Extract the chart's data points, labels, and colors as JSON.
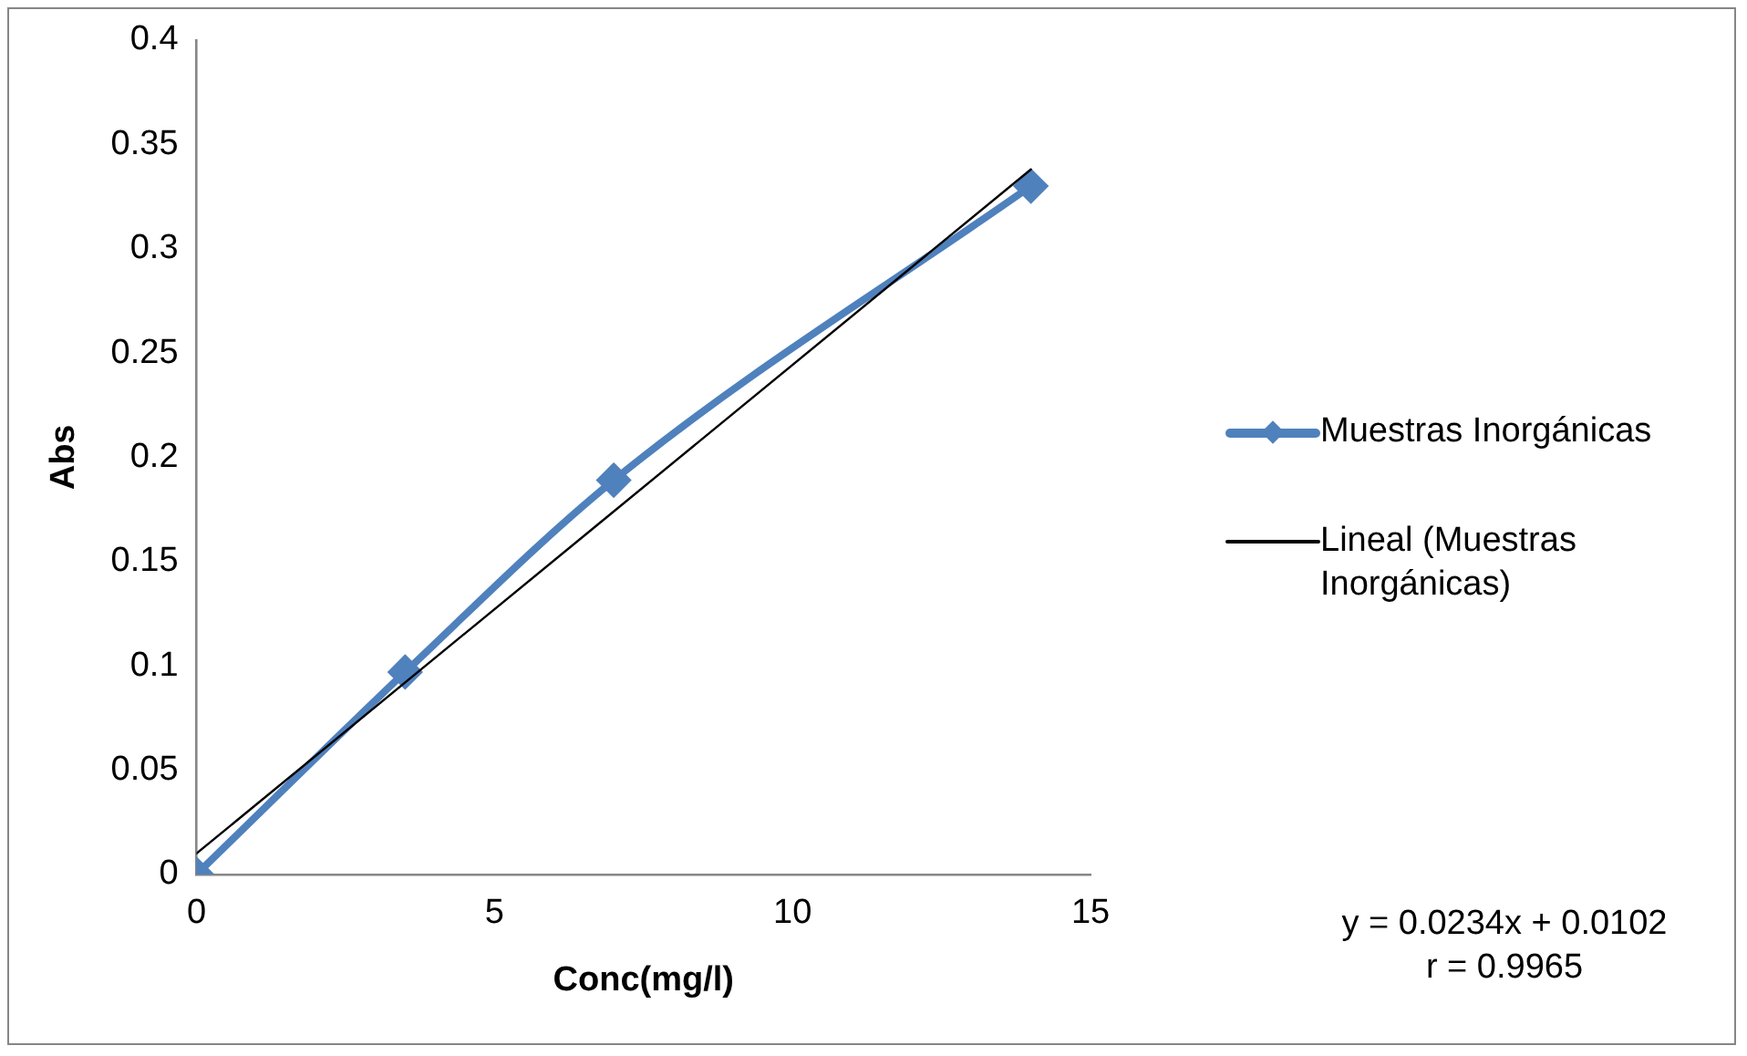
{
  "chart_data": {
    "type": "line",
    "xlabel": "Conc(mg/l)",
    "ylabel": "Abs",
    "xlim": [
      0,
      15
    ],
    "xticks": [
      0,
      5,
      10,
      15
    ],
    "ylim": [
      0,
      0.4
    ],
    "yticks": [
      0,
      0.05,
      0.1,
      0.15,
      0.2,
      0.25,
      0.3,
      0.35,
      0.4
    ],
    "grid": false,
    "legend": "right",
    "line_style": "solid",
    "series": [
      {
        "name": "Muestras Inorgánicas",
        "color": "#4f81bd",
        "marker": "diamond",
        "x": [
          0,
          3.5,
          7,
          14
        ],
        "values": [
          0,
          0.097,
          0.189,
          0.33
        ]
      },
      {
        "name": "Lineal (Muestras Inorgánicas)",
        "color": "#000000",
        "marker": "none",
        "x": [
          0,
          14
        ],
        "values": [
          0.01,
          0.338
        ]
      }
    ],
    "annotations": [
      "y = 0.0234x + 0.0102",
      "r = 0.9965"
    ]
  }
}
